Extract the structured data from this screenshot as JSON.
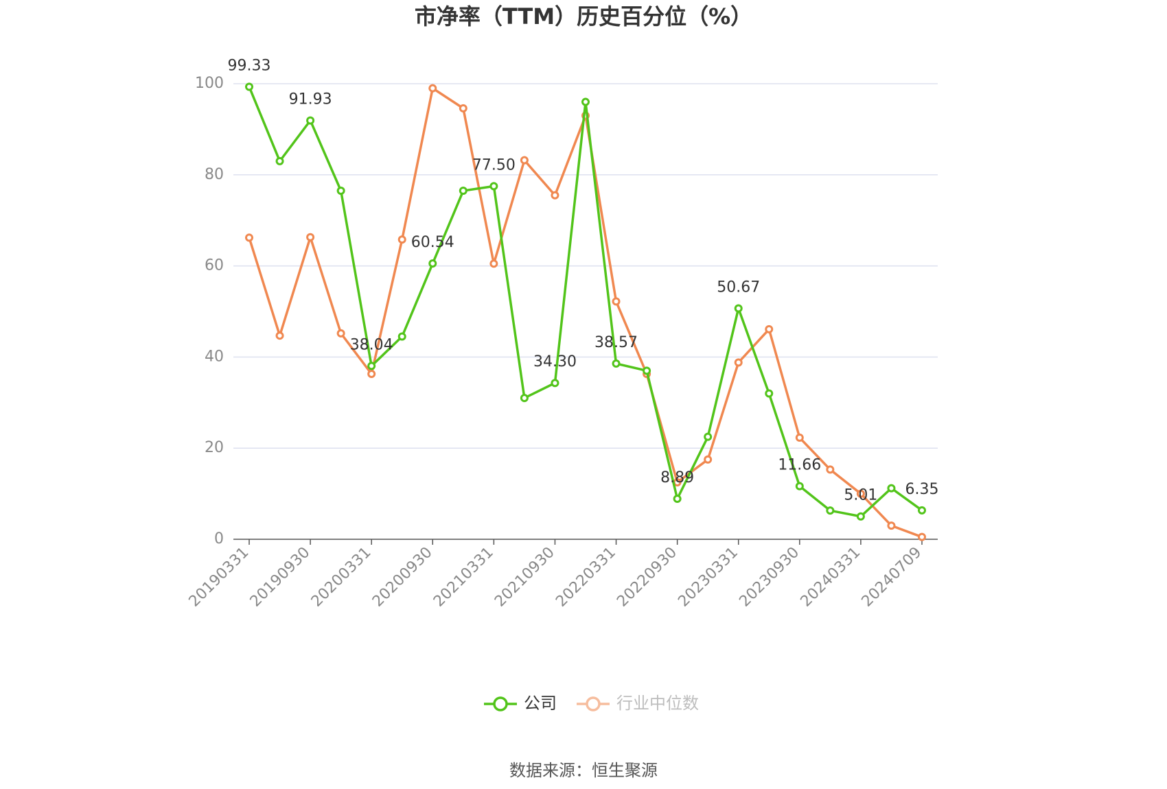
{
  "chart_data": {
    "type": "line",
    "title": "市净率（TTM）历史百分位（%）",
    "source": "数据来源：恒生聚源",
    "categories": [
      "20190331",
      null,
      "20190930",
      null,
      "20200331",
      null,
      "20200930",
      null,
      "20210331",
      null,
      "20210930",
      null,
      "20220331",
      null,
      "20220930",
      null,
      "20230331",
      null,
      "20230930",
      null,
      "20240331",
      null,
      "20240709"
    ],
    "series": [
      {
        "name": "公司",
        "color": "#52c41a",
        "values": [
          99.33,
          83,
          91.93,
          76.5,
          38.04,
          44.5,
          60.54,
          76.5,
          77.5,
          31,
          34.3,
          96,
          38.57,
          37,
          8.89,
          22.5,
          50.67,
          32,
          11.66,
          6.3,
          5.01,
          11.2,
          6.35
        ],
        "value_labels": [
          "99.33",
          null,
          "91.93",
          null,
          "38.04",
          null,
          "60.54",
          null,
          "77.50",
          null,
          "34.30",
          null,
          "38.57",
          null,
          "8.89",
          null,
          "50.67",
          null,
          "11.66",
          null,
          "5.01",
          null,
          "6.35"
        ]
      },
      {
        "name": "行业中位数",
        "color": "#f08850",
        "values": [
          66.2,
          44.7,
          66.3,
          45.2,
          36.3,
          65.8,
          99,
          94.6,
          60.5,
          83.2,
          75.5,
          93,
          52.2,
          36.3,
          12.5,
          17.5,
          38.8,
          46.1,
          22.3,
          15.3,
          10,
          3,
          0.5
        ]
      }
    ],
    "ylim": [
      0,
      100
    ],
    "yticks": [
      0,
      20,
      40,
      60,
      80,
      100
    ],
    "grid": true
  }
}
